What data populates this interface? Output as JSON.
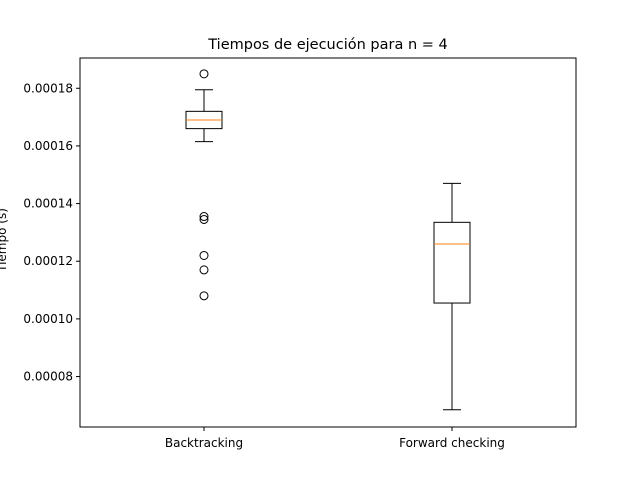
{
  "chart_data": {
    "type": "box",
    "title": "Tiempos de ejecución para n = 4",
    "xlabel": "",
    "ylabel": "Tiempo (s)",
    "ylim": [
      6.25e-05,
      0.0001905
    ],
    "yticks": [
      "0.00008",
      "0.00010",
      "0.00012",
      "0.00014",
      "0.00016",
      "0.00018"
    ],
    "ytick_values": [
      8e-05,
      0.0001,
      0.00012,
      0.00014,
      0.00016,
      0.00018
    ],
    "categories": [
      "Backtracking",
      "Forward checking"
    ],
    "boxes": [
      {
        "name": "Backtracking",
        "whisker_low": 0.0001615,
        "q1": 0.000166,
        "median": 0.000169,
        "q3": 0.000172,
        "whisker_high": 0.0001795,
        "outliers": [
          0.000185,
          0.0001355,
          0.0001345,
          0.000122,
          0.000117,
          0.000108
        ]
      },
      {
        "name": "Forward checking",
        "whisker_low": 6.85e-05,
        "q1": 0.0001055,
        "median": 0.000126,
        "q3": 0.0001335,
        "whisker_high": 0.000147,
        "outliers": []
      }
    ],
    "colors": {
      "box": "#000000",
      "median": "#ff7f0e",
      "outlier": "#000000"
    },
    "grid": false,
    "legend": "none"
  }
}
